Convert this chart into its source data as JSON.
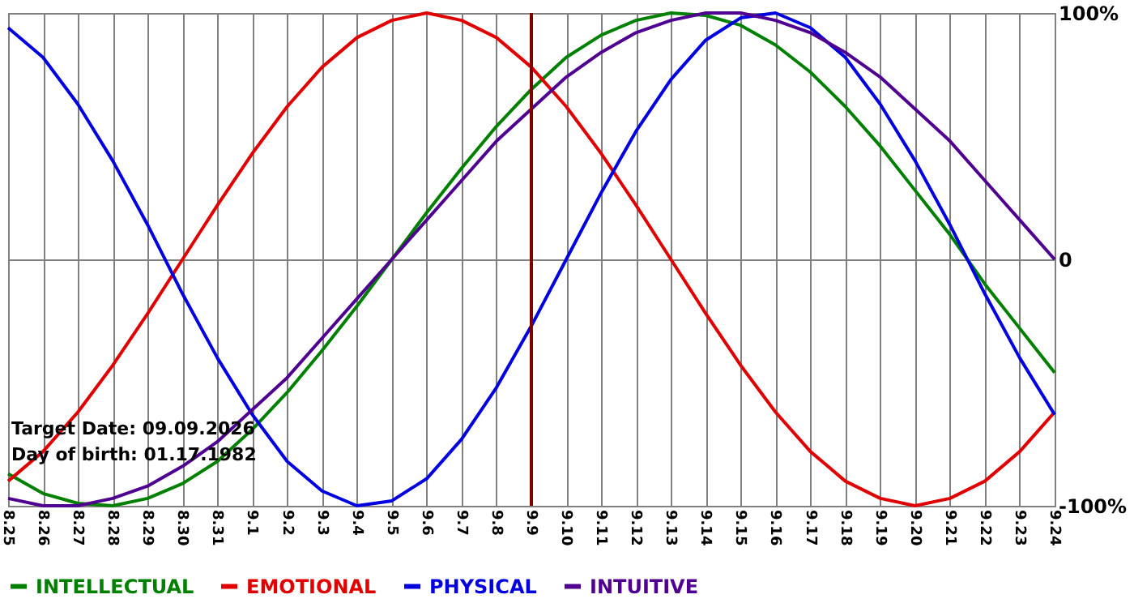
{
  "chart_data": {
    "type": "line",
    "categories": [
      "8.25",
      "8.26",
      "8.27",
      "8.28",
      "8.29",
      "8.30",
      "8.31",
      "9.1",
      "9.2",
      "9.3",
      "9.4",
      "9.5",
      "9.6",
      "9.7",
      "9.8",
      "9.9",
      "9.10",
      "9.11",
      "9.12",
      "9.13",
      "9.14",
      "9.15",
      "9.16",
      "9.17",
      "9.18",
      "9.19",
      "9.20",
      "9.21",
      "9.22",
      "9.23",
      "9.24"
    ],
    "series": [
      {
        "name": "INTELLECTUAL",
        "color": "#008000",
        "values": [
          -87,
          -95,
          -99,
          -100,
          -97,
          -91,
          -82,
          -69,
          -54,
          -37,
          -19,
          0,
          19,
          37,
          54,
          69,
          82,
          91,
          97,
          100,
          99,
          95,
          87,
          76,
          62,
          46,
          28,
          10,
          -10,
          -28,
          -46
        ]
      },
      {
        "name": "EMOTIONAL",
        "color": "#e00000",
        "values": [
          -90,
          -78,
          -62,
          -43,
          -22,
          0,
          22,
          43,
          62,
          78,
          90,
          97,
          100,
          97,
          90,
          78,
          62,
          43,
          22,
          0,
          -22,
          -43,
          -62,
          -78,
          -90,
          -97,
          -100,
          -97,
          -90,
          -78,
          -62
        ]
      },
      {
        "name": "PHYSICAL",
        "color": "#0000e0",
        "values": [
          94,
          82,
          63,
          40,
          14,
          -14,
          -40,
          -63,
          -82,
          -94,
          -100,
          -98,
          -89,
          -73,
          -52,
          -27,
          0,
          27,
          52,
          73,
          89,
          98,
          100,
          94,
          82,
          63,
          40,
          14,
          -14,
          -40,
          -63
        ]
      },
      {
        "name": "INTUITIVE",
        "color": "#500090",
        "values": [
          -97,
          -100,
          -100,
          -97,
          -92,
          -84,
          -74,
          -61,
          -48,
          -32,
          -16,
          0,
          16,
          32,
          48,
          61,
          74,
          84,
          92,
          97,
          100,
          100,
          97,
          92,
          84,
          74,
          61,
          48,
          32,
          16,
          0
        ]
      }
    ],
    "ylim": [
      -100,
      100
    ],
    "yticks": [
      {
        "value": -100,
        "label": "-100%"
      },
      0,
      {
        "value": 100,
        "label": "100%"
      }
    ],
    "ref_lines": [
      {
        "axis": "x",
        "value": "9.9",
        "color": "#800000"
      }
    ],
    "annotations": [
      "Target Date: 09.09.2026",
      "Day of birth: 01.17.1982"
    ],
    "grid": true,
    "legend": "bottom left",
    "marker": "none",
    "line_style": "solid"
  }
}
